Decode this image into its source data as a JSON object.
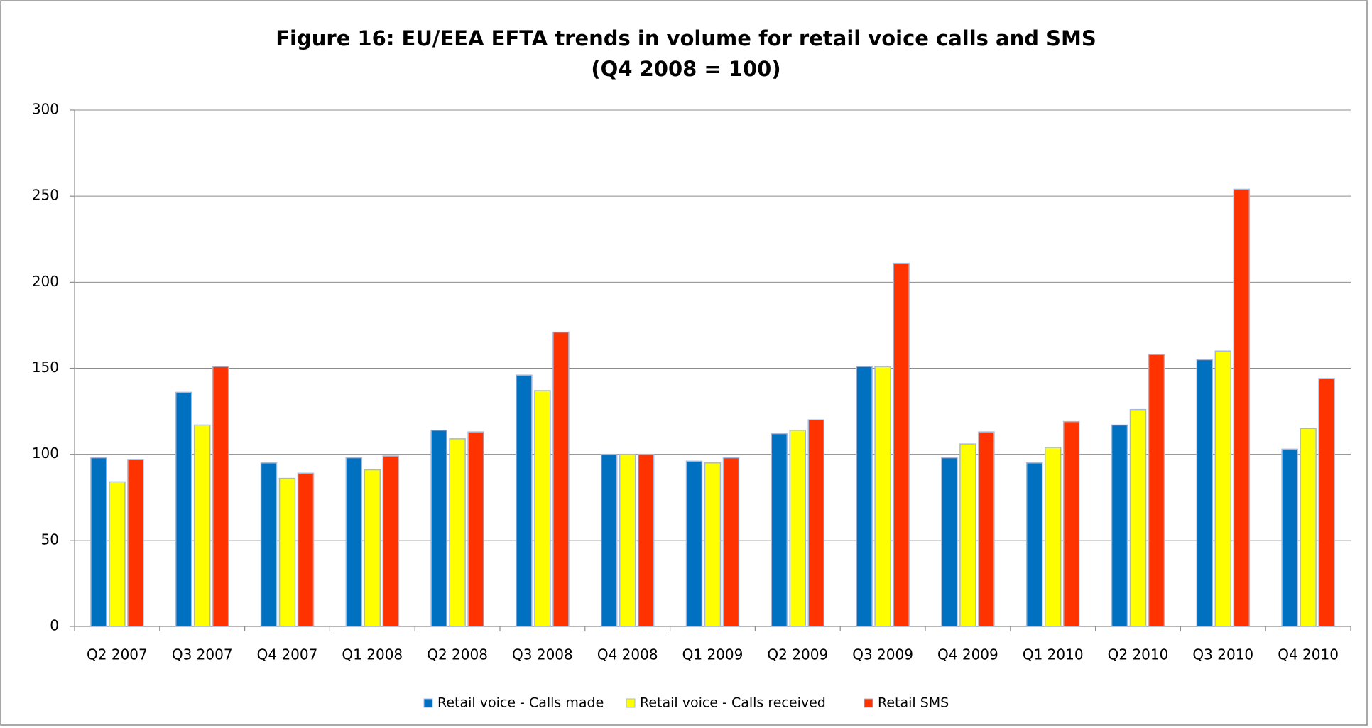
{
  "chart_data": {
    "type": "bar",
    "title": "Figure 16: EU/EEA EFTA trends in volume for retail voice calls and SMS",
    "subtitle": "(Q4 2008 = 100)",
    "categories": [
      "Q2 2007",
      "Q3 2007",
      "Q4 2007",
      "Q1 2008",
      "Q2 2008",
      "Q3 2008",
      "Q4 2008",
      "Q1 2009",
      "Q2 2009",
      "Q3 2009",
      "Q4 2009",
      "Q1 2010",
      "Q2 2010",
      "Q3 2010",
      "Q4 2010"
    ],
    "series": [
      {
        "name": "Retail voice - Calls made",
        "color": "#0070c0",
        "values": [
          98,
          136,
          95,
          98,
          114,
          146,
          100,
          96,
          112,
          151,
          98,
          95,
          117,
          155,
          103
        ]
      },
      {
        "name": "Retail voice - Calls received",
        "color": "#ffff00",
        "values": [
          84,
          117,
          86,
          91,
          109,
          137,
          100,
          95,
          114,
          151,
          106,
          104,
          126,
          160,
          115
        ]
      },
      {
        "name": "Retail SMS",
        "color": "#ff3300",
        "values": [
          97,
          151,
          89,
          99,
          113,
          171,
          100,
          98,
          120,
          211,
          113,
          119,
          158,
          254,
          144
        ]
      }
    ],
    "ylim": [
      0,
      300
    ],
    "yticks": [
      0,
      50,
      100,
      150,
      200,
      250,
      300
    ],
    "grid": true,
    "legend": "bottom"
  }
}
